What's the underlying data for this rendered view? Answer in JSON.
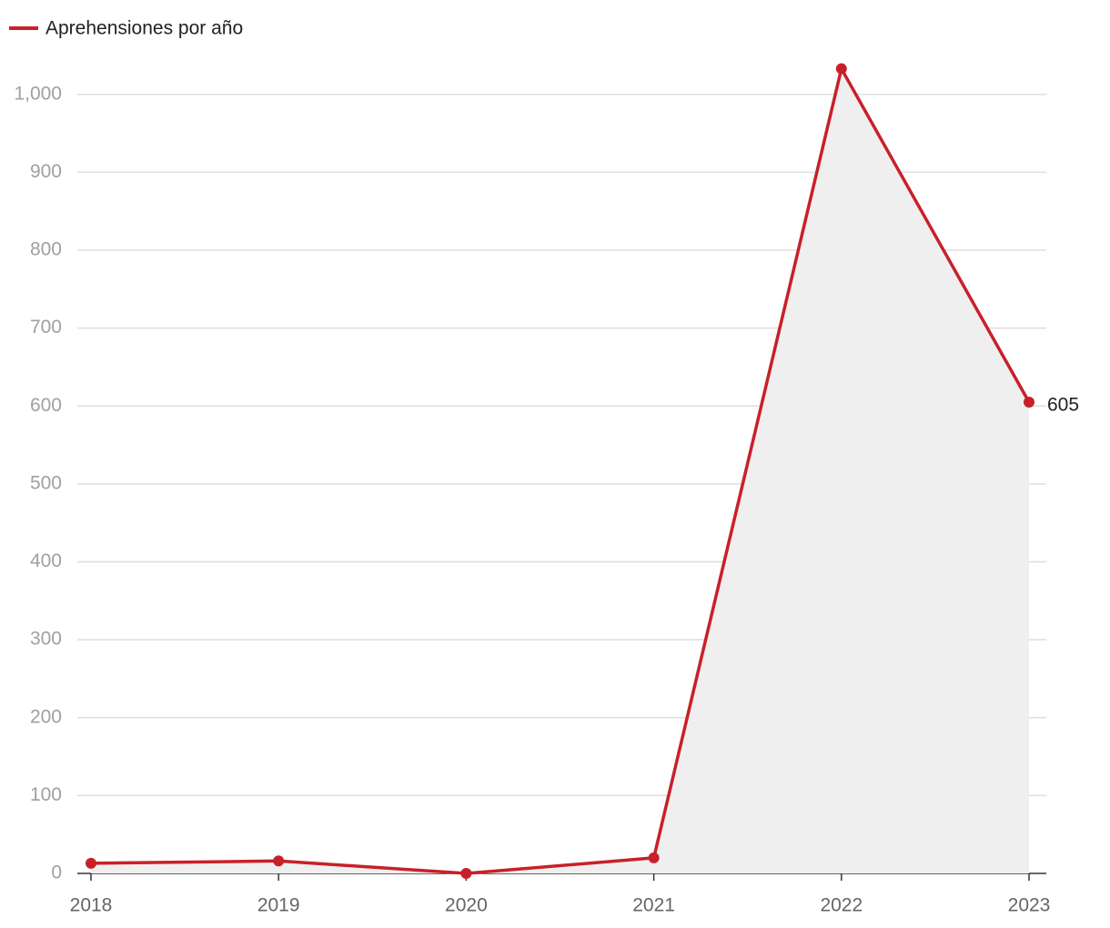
{
  "chart_data": {
    "type": "line",
    "categories": [
      "2018",
      "2019",
      "2020",
      "2021",
      "2022",
      "2023"
    ],
    "series": [
      {
        "name": "Aprehensiones por año",
        "color": "#c8202a",
        "area_color": "#efefef",
        "values": [
          13,
          16,
          0,
          20,
          1033,
          605
        ]
      }
    ],
    "ylim": [
      0,
      1050
    ],
    "yticks": [
      0,
      100,
      200,
      300,
      400,
      500,
      600,
      700,
      800,
      900,
      {
        "value": 1000,
        "label": "1,000"
      }
    ],
    "grid": true,
    "legend": "top-left",
    "data_labels": "last"
  }
}
